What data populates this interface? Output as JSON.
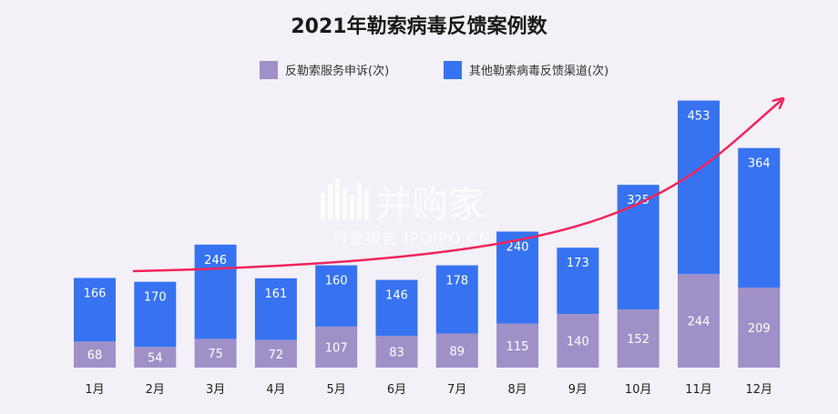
{
  "chart_data": {
    "type": "bar",
    "stacked": true,
    "title": "2021年勒索病毒反馈案例数",
    "categories": [
      "1月",
      "2月",
      "3月",
      "4月",
      "5月",
      "6月",
      "7月",
      "8月",
      "9月",
      "10月",
      "11月",
      "12月"
    ],
    "series": [
      {
        "name": "反勒索服务申诉(次)",
        "color": "#a090c8",
        "values": [
          68,
          54,
          75,
          72,
          107,
          83,
          89,
          115,
          140,
          152,
          244,
          209
        ]
      },
      {
        "name": "其他勒索病毒反馈渠道(次)",
        "color": "#3773f0",
        "values": [
          166,
          170,
          246,
          161,
          160,
          146,
          178,
          240,
          173,
          325,
          453,
          364
        ]
      }
    ],
    "legend_position": "top-center",
    "grid": false,
    "trend_arrow_color": "#f0245a"
  },
  "watermark": {
    "brand": "并购家",
    "tagline": "行业报告 IPOIPO.CN"
  }
}
